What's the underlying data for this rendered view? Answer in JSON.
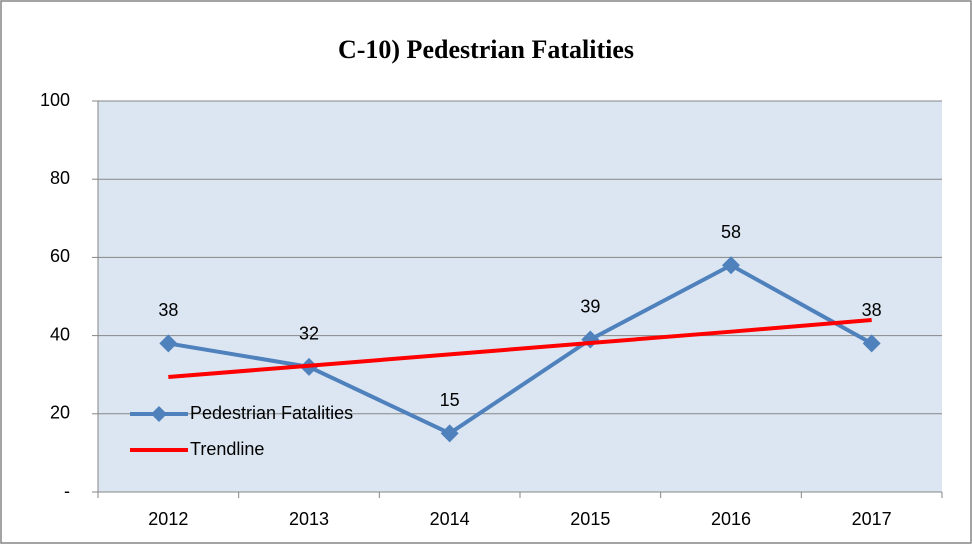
{
  "chart_data": {
    "type": "line",
    "title": "C-10) Pedestrian Fatalities",
    "categories": [
      "2012",
      "2013",
      "2014",
      "2015",
      "2016",
      "2017"
    ],
    "series": [
      {
        "name": "Pedestrian Fatalities",
        "color": "#4f81bd",
        "marker": "diamond",
        "data_labels": true,
        "values": [
          38,
          32,
          15,
          39,
          58,
          38
        ]
      },
      {
        "name": "Trendline",
        "color": "#ff0000",
        "marker": "none",
        "data_labels": false,
        "values": [
          29.4,
          32.3,
          35.2,
          38.1,
          41.0,
          44.0
        ]
      }
    ],
    "ylim": [
      0,
      100
    ],
    "yticks": [
      {
        "value": 0,
        "label": "-"
      },
      20,
      40,
      60,
      80,
      100
    ],
    "grid": true,
    "legend": "lower left"
  }
}
